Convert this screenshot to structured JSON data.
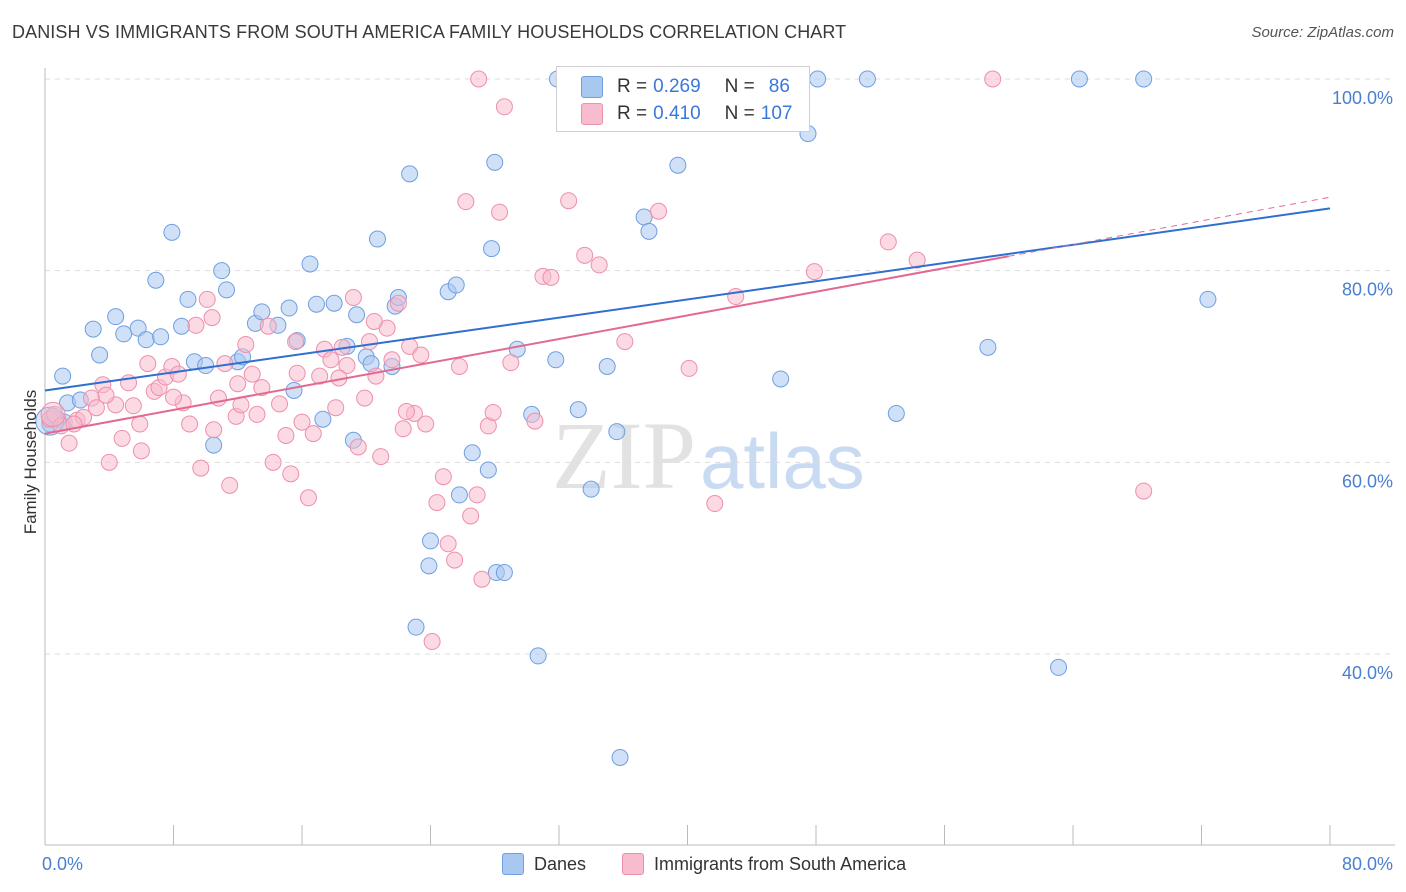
{
  "header": {
    "title": "DANISH VS IMMIGRANTS FROM SOUTH AMERICA FAMILY HOUSEHOLDS CORRELATION CHART",
    "source": "Source: ZipAtlas.com"
  },
  "watermark": {
    "zip": "ZIP",
    "atlas": "atlas"
  },
  "legend": {
    "rows": [
      {
        "r_label": "R =",
        "r_value": "0.269",
        "n_label": "N =",
        "n_value": "86"
      },
      {
        "r_label": "R =",
        "r_value": "0.410",
        "n_label": "N =",
        "n_value": "107"
      }
    ]
  },
  "bottom_legend": {
    "series1": "Danes",
    "series2": "Immigrants from South America"
  },
  "colors": {
    "danes_fill": "#a9c8f0",
    "danes_stroke": "#6f9fe0",
    "danes_line": "#2f6fd0",
    "imm_fill": "#f7bccd",
    "imm_stroke": "#ee8fac",
    "imm_line": "#e26a92",
    "axis_text": "#4a7fd0",
    "grid": "#dddddd"
  },
  "chart_data": {
    "type": "scatter",
    "title": "DANISH VS IMMIGRANTS FROM SOUTH AMERICA FAMILY HOUSEHOLDS CORRELATION CHART",
    "xlabel": "",
    "ylabel": "Family Households",
    "xlim": [
      0,
      80
    ],
    "ylim": [
      20,
      102
    ],
    "x_tick_labels": [
      "0.0%",
      "80.0%"
    ],
    "y_tick_labels": [
      "40.0%",
      "60.0%",
      "80.0%",
      "100.0%"
    ],
    "y_ticks": [
      40,
      60,
      80,
      100
    ],
    "grid": true,
    "legend_position": "top-center",
    "series": [
      {
        "name": "Danes",
        "r": 0.269,
        "n": 86,
        "trend": {
          "x": [
            0,
            80
          ],
          "y": [
            67.5,
            86.5
          ]
        },
        "points": [
          [
            0.3,
            64.0
          ],
          [
            0.8,
            64.5
          ],
          [
            1.1,
            69.0
          ],
          [
            1.4,
            66.2
          ],
          [
            1.2,
            64.2
          ],
          [
            2.2,
            66.5
          ],
          [
            3.0,
            73.9
          ],
          [
            3.4,
            71.2
          ],
          [
            4.4,
            75.2
          ],
          [
            4.9,
            73.4
          ],
          [
            5.8,
            74.0
          ],
          [
            6.3,
            72.8
          ],
          [
            6.9,
            79.0
          ],
          [
            7.2,
            73.1
          ],
          [
            7.9,
            84.0
          ],
          [
            8.5,
            74.2
          ],
          [
            8.9,
            77.0
          ],
          [
            9.3,
            70.5
          ],
          [
            10.0,
            70.1
          ],
          [
            10.5,
            61.8
          ],
          [
            11.0,
            80.0
          ],
          [
            11.3,
            78.0
          ],
          [
            12.0,
            70.5
          ],
          [
            12.3,
            71.0
          ],
          [
            13.1,
            74.5
          ],
          [
            13.5,
            75.7
          ],
          [
            14.5,
            74.3
          ],
          [
            15.2,
            76.1
          ],
          [
            15.5,
            67.5
          ],
          [
            15.7,
            72.7
          ],
          [
            16.5,
            80.7
          ],
          [
            17.3,
            64.5
          ],
          [
            18.0,
            76.6
          ],
          [
            19.2,
            62.3
          ],
          [
            18.8,
            72.1
          ],
          [
            19.4,
            75.4
          ],
          [
            20.0,
            71.0
          ],
          [
            20.3,
            70.3
          ],
          [
            20.7,
            83.3
          ],
          [
            21.8,
            76.3
          ],
          [
            21.6,
            70.0
          ],
          [
            22.0,
            77.2
          ],
          [
            22.7,
            90.1
          ],
          [
            23.1,
            42.8
          ],
          [
            23.9,
            49.2
          ],
          [
            24.0,
            51.8
          ],
          [
            25.1,
            77.8
          ],
          [
            25.6,
            78.5
          ],
          [
            25.8,
            56.6
          ],
          [
            26.6,
            61.0
          ],
          [
            27.6,
            59.2
          ],
          [
            27.8,
            82.3
          ],
          [
            28.0,
            91.3
          ],
          [
            28.1,
            48.5
          ],
          [
            28.6,
            48.5
          ],
          [
            29.4,
            71.8
          ],
          [
            30.3,
            65.0
          ],
          [
            30.7,
            39.8
          ],
          [
            31.8,
            70.7
          ],
          [
            31.9,
            100.0
          ],
          [
            32.4,
            100.0
          ],
          [
            33.2,
            65.5
          ],
          [
            34.0,
            57.2
          ],
          [
            35.0,
            70.0
          ],
          [
            35.4,
            96.5
          ],
          [
            35.6,
            63.2
          ],
          [
            36.5,
            100.0
          ],
          [
            37.3,
            85.6
          ],
          [
            37.6,
            84.1
          ],
          [
            39.4,
            91.0
          ],
          [
            40.9,
            100.0
          ],
          [
            41.2,
            100.0
          ],
          [
            42.4,
            100.0
          ],
          [
            45.8,
            68.7
          ],
          [
            47.5,
            94.3
          ],
          [
            48.1,
            100.0
          ],
          [
            51.2,
            100.0
          ],
          [
            53.0,
            65.1
          ],
          [
            58.7,
            72.0
          ],
          [
            63.1,
            38.6
          ],
          [
            64.4,
            100.0
          ],
          [
            68.4,
            100.0
          ],
          [
            72.4,
            77.0
          ],
          [
            35.8,
            29.2
          ],
          [
            0.5,
            64.8
          ],
          [
            16.9,
            76.5
          ]
        ]
      },
      {
        "name": "Immigrants from South America",
        "r": 0.41,
        "n": 107,
        "trend": {
          "x": [
            0,
            60
          ],
          "y": [
            63.0,
            81.5
          ]
        },
        "points": [
          [
            0.3,
            64.5
          ],
          [
            0.6,
            65.0
          ],
          [
            1.0,
            63.8
          ],
          [
            1.5,
            62.0
          ],
          [
            2.0,
            64.4
          ],
          [
            2.4,
            64.7
          ],
          [
            2.9,
            66.7
          ],
          [
            3.2,
            65.7
          ],
          [
            3.6,
            68.1
          ],
          [
            4.0,
            60.0
          ],
          [
            4.4,
            66.0
          ],
          [
            4.8,
            62.5
          ],
          [
            5.2,
            68.3
          ],
          [
            5.5,
            65.9
          ],
          [
            5.9,
            64.0
          ],
          [
            6.4,
            70.3
          ],
          [
            6.8,
            67.4
          ],
          [
            7.1,
            67.8
          ],
          [
            7.5,
            68.9
          ],
          [
            7.9,
            70.0
          ],
          [
            8.3,
            69.2
          ],
          [
            8.6,
            66.2
          ],
          [
            9.0,
            64.0
          ],
          [
            9.4,
            74.3
          ],
          [
            9.7,
            59.4
          ],
          [
            10.1,
            77.0
          ],
          [
            10.4,
            75.1
          ],
          [
            10.8,
            66.7
          ],
          [
            11.2,
            70.3
          ],
          [
            11.5,
            57.6
          ],
          [
            11.9,
            64.8
          ],
          [
            12.2,
            66.0
          ],
          [
            12.5,
            72.3
          ],
          [
            12.9,
            69.2
          ],
          [
            13.2,
            65.0
          ],
          [
            13.5,
            67.8
          ],
          [
            13.9,
            74.2
          ],
          [
            14.2,
            60.0
          ],
          [
            14.6,
            66.1
          ],
          [
            15.0,
            62.8
          ],
          [
            15.3,
            58.8
          ],
          [
            15.7,
            69.3
          ],
          [
            16.0,
            64.2
          ],
          [
            16.4,
            56.3
          ],
          [
            16.7,
            63.0
          ],
          [
            17.1,
            69.0
          ],
          [
            17.4,
            71.8
          ],
          [
            17.8,
            70.7
          ],
          [
            18.1,
            65.7
          ],
          [
            18.5,
            72.0
          ],
          [
            18.8,
            70.1
          ],
          [
            19.2,
            77.2
          ],
          [
            19.5,
            61.6
          ],
          [
            19.9,
            66.7
          ],
          [
            20.2,
            72.6
          ],
          [
            20.6,
            69.0
          ],
          [
            20.9,
            60.6
          ],
          [
            21.3,
            74.0
          ],
          [
            21.6,
            70.7
          ],
          [
            22.0,
            76.6
          ],
          [
            22.3,
            63.5
          ],
          [
            22.7,
            72.1
          ],
          [
            23.0,
            65.1
          ],
          [
            23.4,
            71.2
          ],
          [
            23.7,
            64.0
          ],
          [
            24.1,
            41.3
          ],
          [
            24.4,
            55.8
          ],
          [
            24.8,
            58.5
          ],
          [
            25.1,
            51.5
          ],
          [
            25.5,
            49.8
          ],
          [
            25.8,
            70.0
          ],
          [
            26.2,
            87.2
          ],
          [
            26.5,
            54.4
          ],
          [
            26.9,
            56.6
          ],
          [
            27.2,
            47.8
          ],
          [
            27.6,
            63.8
          ],
          [
            27.9,
            65.2
          ],
          [
            28.3,
            86.1
          ],
          [
            28.6,
            97.1
          ],
          [
            29.0,
            70.4
          ],
          [
            30.5,
            64.3
          ],
          [
            31.0,
            79.4
          ],
          [
            31.5,
            79.3
          ],
          [
            32.6,
            87.3
          ],
          [
            33.6,
            81.6
          ],
          [
            34.5,
            80.6
          ],
          [
            36.1,
            72.6
          ],
          [
            38.2,
            86.2
          ],
          [
            40.1,
            69.8
          ],
          [
            41.7,
            55.7
          ],
          [
            43.0,
            77.3
          ],
          [
            47.9,
            79.9
          ],
          [
            52.5,
            83.0
          ],
          [
            54.3,
            81.1
          ],
          [
            59.0,
            100.0
          ],
          [
            68.4,
            57.0
          ],
          [
            27.0,
            100.0
          ],
          [
            12.0,
            68.2
          ],
          [
            8.0,
            66.8
          ],
          [
            1.8,
            64.0
          ],
          [
            15.6,
            72.6
          ],
          [
            20.5,
            74.7
          ],
          [
            18.3,
            68.8
          ],
          [
            22.5,
            65.3
          ],
          [
            10.5,
            63.4
          ],
          [
            6.0,
            61.2
          ],
          [
            3.8,
            67.0
          ]
        ]
      }
    ]
  }
}
